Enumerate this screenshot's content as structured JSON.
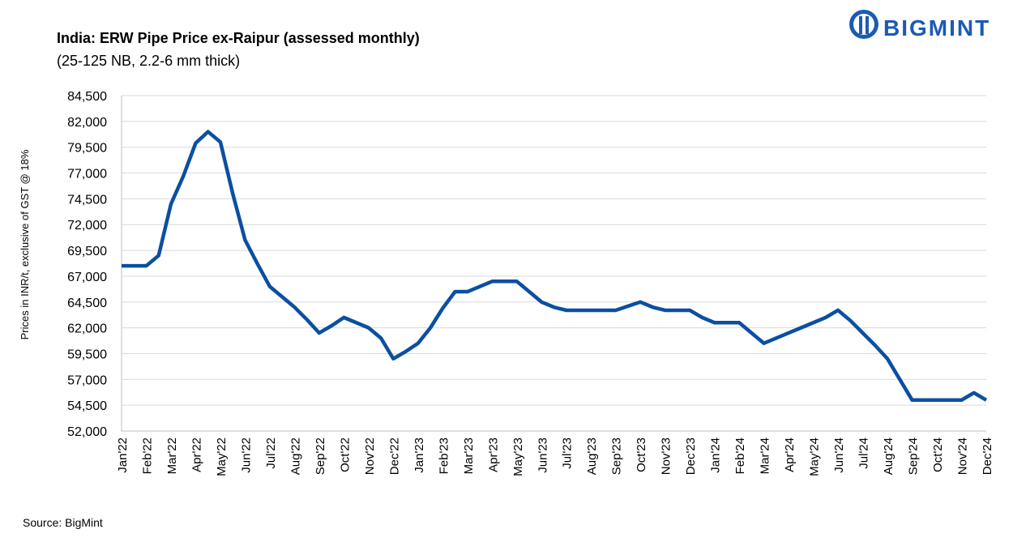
{
  "chart_data": {
    "type": "line",
    "title": "India: ERW Pipe Price ex-Raipur (assessed monthly)",
    "subtitle": "(25-125 NB, 2.2-6 mm thick)",
    "y_label": "Prices in INR/t, exclusive of GST @ 18%",
    "source": "Source: BigMint",
    "brand": "BIGMINT",
    "categories": [
      "Jan'22",
      null,
      "Feb'22",
      null,
      "Mar'22",
      null,
      "Apr'22",
      null,
      "May'22",
      null,
      "Jun'22",
      null,
      "Jul'22",
      null,
      "Aug'22",
      null,
      "Sep'22",
      null,
      "Oct'22",
      null,
      "Nov'22",
      null,
      "Dec'22",
      null,
      "Jan'23",
      null,
      "Feb'23",
      null,
      "Mar'23",
      null,
      "Apr'23",
      null,
      "May'23",
      null,
      "Jun'23",
      null,
      "Jul'23",
      null,
      "Aug'23",
      null,
      "Sep'23",
      null,
      "Oct'23",
      null,
      "Nov'23",
      null,
      "Dec'23",
      null,
      "Jan'24",
      null,
      "Feb'24",
      null,
      "Mar'24",
      null,
      "Apr'24",
      null,
      "May'24",
      null,
      "Jun'24",
      null,
      "Jul'24",
      null,
      "Aug'24",
      null,
      "Sep'24",
      null,
      "Oct'24",
      null,
      "Nov'24",
      null,
      "Dec'24"
    ],
    "series": [
      {
        "name": "ERW Pipe Price",
        "color": "#0b4fa0",
        "values": [
          68000,
          68000,
          68000,
          69000,
          74000,
          76700,
          79900,
          81000,
          80000,
          75000,
          70500,
          68200,
          66000,
          65000,
          64000,
          62800,
          61500,
          62200,
          63000,
          62500,
          62000,
          61000,
          59000,
          59700,
          60500,
          62000,
          63900,
          65500,
          65500,
          66000,
          66500,
          66500,
          66500,
          65500,
          64500,
          64000,
          63700,
          63700,
          63700,
          63700,
          63700,
          64100,
          64500,
          64000,
          63700,
          63700,
          63700,
          63000,
          62500,
          62500,
          62500,
          61500,
          60500,
          61000,
          61500,
          62000,
          62500,
          63000,
          63700,
          62700,
          61500,
          60300,
          59000,
          57000,
          55000,
          55000,
          55000,
          55000,
          55000,
          55700,
          55000
        ]
      }
    ],
    "ylim": [
      52000,
      84500
    ],
    "yticks": [
      {
        "value": 52000,
        "label": "52,000"
      },
      {
        "value": 54500,
        "label": "54,500"
      },
      {
        "value": 57000,
        "label": "57,000"
      },
      {
        "value": 59500,
        "label": "59,500"
      },
      {
        "value": 62000,
        "label": "62,000"
      },
      {
        "value": 64500,
        "label": "64,500"
      },
      {
        "value": 67000,
        "label": "67,000"
      },
      {
        "value": 69500,
        "label": "69,500"
      },
      {
        "value": 72000,
        "label": "72,000"
      },
      {
        "value": 74500,
        "label": "74,500"
      },
      {
        "value": 77000,
        "label": "77,000"
      },
      {
        "value": 79500,
        "label": "79,500"
      },
      {
        "value": 82000,
        "label": "82,000"
      },
      {
        "value": 84500,
        "label": "84,500"
      }
    ],
    "grid": true
  }
}
